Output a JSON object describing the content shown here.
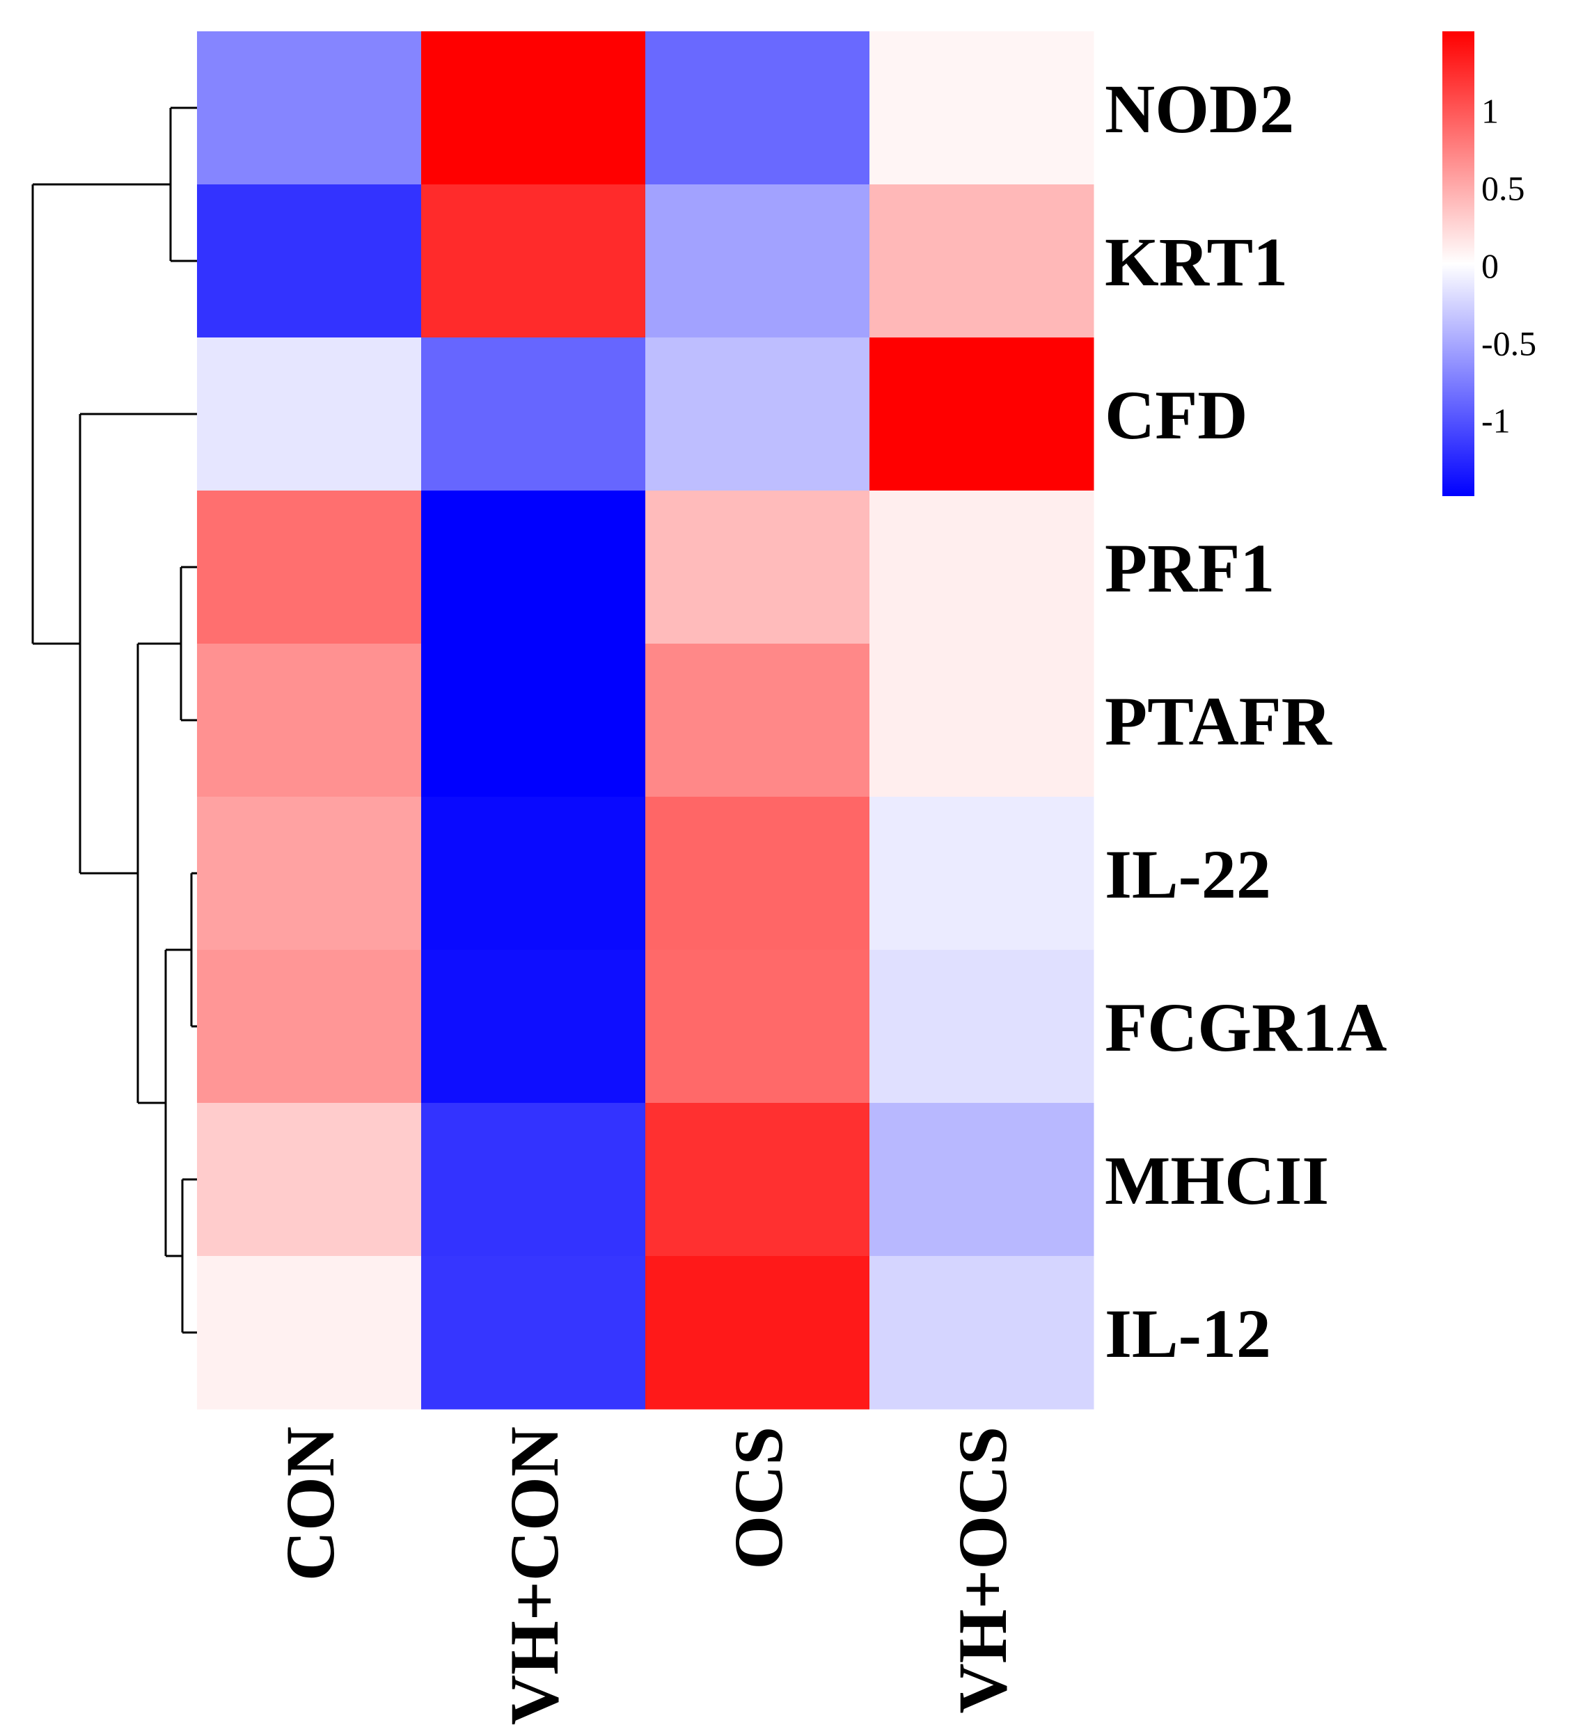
{
  "chart_data": {
    "type": "heatmap",
    "title": "",
    "columns": [
      "CON",
      "VH+CON",
      "OCS",
      "VH+OCS"
    ],
    "rows": [
      "NOD2",
      "KRT1",
      "CFD",
      "PRF1",
      "PTAFR",
      "IL-22",
      "FCGR1A",
      "MHCII",
      "IL-12"
    ],
    "values": [
      [
        -0.72,
        1.5,
        -0.88,
        0.06
      ],
      [
        -1.2,
        1.25,
        -0.55,
        0.42
      ],
      [
        -0.15,
        -0.9,
        -0.38,
        1.5
      ],
      [
        0.85,
        -1.5,
        0.4,
        0.1
      ],
      [
        0.65,
        -1.5,
        0.7,
        0.1
      ],
      [
        0.55,
        -1.45,
        0.9,
        -0.12
      ],
      [
        0.62,
        -1.42,
        0.88,
        -0.18
      ],
      [
        0.3,
        -1.2,
        1.22,
        -0.42
      ],
      [
        0.08,
        -1.18,
        1.35,
        -0.25
      ]
    ],
    "color_scale": {
      "min": -1.5,
      "max": 1.5,
      "low_color": "#0000ff",
      "mid_color": "#ffffff",
      "high_color": "#ff0000",
      "ticks": [
        1,
        0.5,
        0,
        -0.5,
        -1
      ],
      "tick_labels": [
        "1",
        "0.5",
        "0",
        "-0.5",
        "-1"
      ]
    },
    "row_dendrogram": true,
    "legend_position": "top-right"
  }
}
